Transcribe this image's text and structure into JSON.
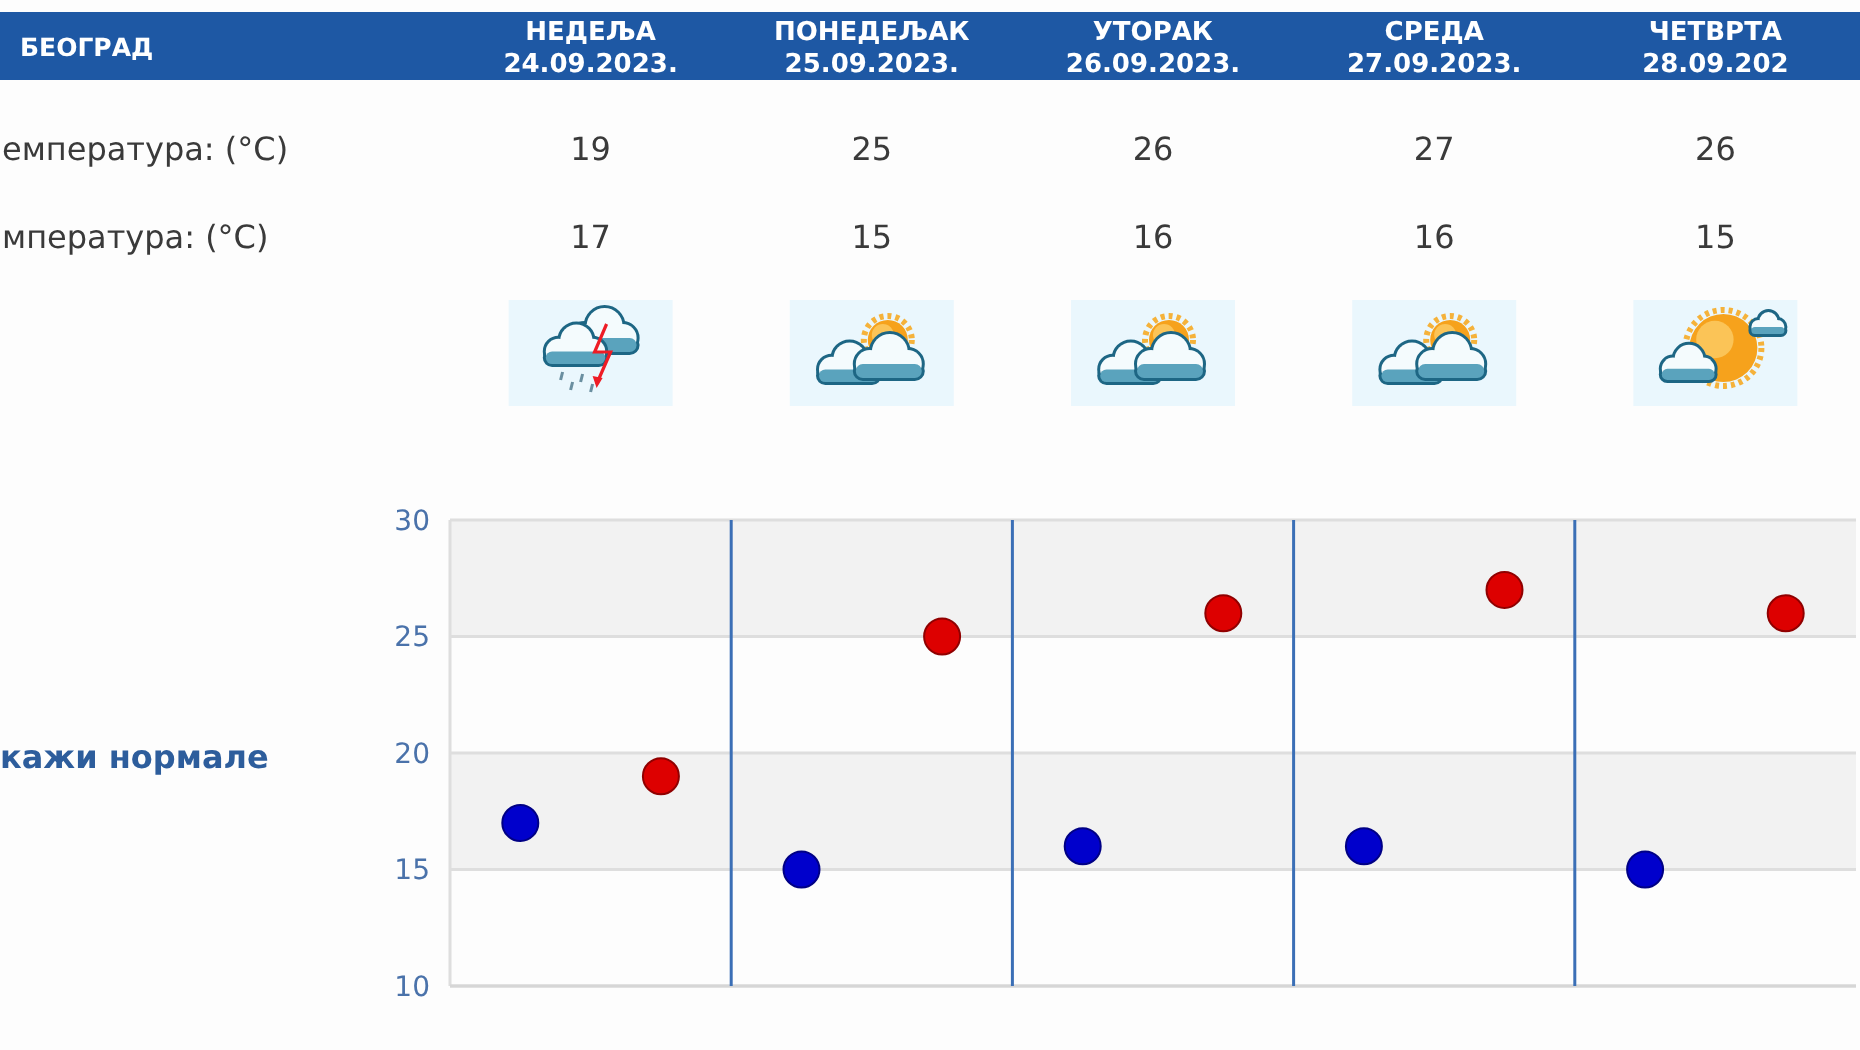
{
  "chart_data": {
    "type": "scatter",
    "title": "БЕОГРАД",
    "categories": [
      null,
      null,
      null,
      null,
      null
    ],
    "series": [
      {
        "color": "#dd0000",
        "values": [
          19,
          25,
          26,
          27,
          26
        ]
      },
      {
        "color": "#0000cc",
        "values": [
          17,
          15,
          16,
          16,
          15
        ]
      }
    ],
    "ylim": [
      10,
      30
    ],
    "yticks": [
      10,
      15,
      20,
      25,
      30
    ],
    "grid": true,
    "bands": [
      {
        "axis": "y",
        "from": 25,
        "to": 30,
        "color": "#f2f2f2"
      },
      {
        "axis": "y",
        "from": 15,
        "to": 20,
        "color": "#f2f2f2"
      }
    ],
    "marker": "circle",
    "data_labels": true,
    "annotations": [
      "НЕДЕЉА\n24.09.2023.",
      "ПОНЕДЕЉАК\n25.09.2023.",
      "УТОРАК\n26.09.2023.",
      "СРЕДА\n27.09.2023.",
      "ЧЕТВРТА\n28.09.202",
      "емпература: (°C)",
      "мпература: (°C)",
      "кажи нормале"
    ]
  }
}
